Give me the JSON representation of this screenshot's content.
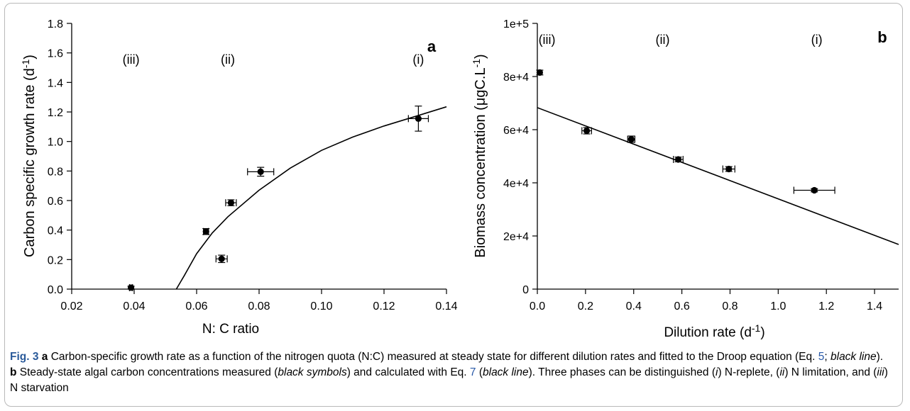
{
  "chart_data": [
    {
      "type": "scatter",
      "panel_label": "a",
      "ylabel": "Carbon specific growth rate (d",
      "ylabel_sup": "-1",
      "ylabel_end": ")",
      "xlabel": "N: C ratio",
      "xlim": [
        0.02,
        0.14
      ],
      "ylim": [
        0.0,
        1.8
      ],
      "xticks": [
        "0.02",
        "0.04",
        "0.06",
        "0.08",
        "0.10",
        "0.12",
        "0.14"
      ],
      "yticks": [
        "0.0",
        "0.2",
        "0.4",
        "0.6",
        "0.8",
        "1.0",
        "1.2",
        "1.4",
        "1.6",
        "1.8"
      ],
      "phase_labels": [
        {
          "text": "(iii)",
          "x": 0.039
        },
        {
          "text": "(ii)",
          "x": 0.07
        },
        {
          "text": "(i)",
          "x": 0.131
        }
      ],
      "points": [
        {
          "x": 0.039,
          "y": 0.01,
          "xerr": 0.0005,
          "yerr": 0.01
        },
        {
          "x": 0.063,
          "y": 0.39,
          "xerr": 0.0008,
          "yerr": 0.02
        },
        {
          "x": 0.068,
          "y": 0.205,
          "xerr": 0.0018,
          "yerr": 0.025
        },
        {
          "x": 0.071,
          "y": 0.585,
          "xerr": 0.0017,
          "yerr": 0.02
        },
        {
          "x": 0.0805,
          "y": 0.795,
          "xerr": 0.0042,
          "yerr": 0.03
        },
        {
          "x": 0.131,
          "y": 1.155,
          "xerr": 0.0032,
          "yerr": 0.085
        }
      ],
      "fit_line": {
        "x": [
          0.0535,
          0.056,
          0.06,
          0.065,
          0.07,
          0.08,
          0.09,
          0.1,
          0.11,
          0.12,
          0.13,
          0.14
        ],
        "y": [
          0.0,
          0.09,
          0.24,
          0.38,
          0.49,
          0.67,
          0.82,
          0.94,
          1.03,
          1.105,
          1.17,
          1.235
        ]
      }
    },
    {
      "type": "scatter",
      "panel_label": "b",
      "ylabel": "Biomass concentration (μgC.L",
      "ylabel_sup": "-1",
      "ylabel_end": ")",
      "xlabel": "Dilution rate (d",
      "xlabel_sup": "-1",
      "xlabel_end": ")",
      "xlim": [
        0.0,
        1.5
      ],
      "ylim": [
        0,
        100000
      ],
      "xticks": [
        "0.0",
        "0.2",
        "0.4",
        "0.6",
        "0.8",
        "1.0",
        "1.2",
        "1.4"
      ],
      "yticks": [
        "0",
        "2e+4",
        "4e+4",
        "6e+4",
        "8e+4",
        "1e+5"
      ],
      "phase_labels": [
        {
          "text": "(iii)",
          "x": 0.04
        },
        {
          "text": "(ii)",
          "x": 0.52
        },
        {
          "text": "(i)",
          "x": 1.16
        }
      ],
      "points": [
        {
          "x": 0.01,
          "y": 81500,
          "xerr": 0.0,
          "yerr": 900
        },
        {
          "x": 0.205,
          "y": 59600,
          "xerr": 0.02,
          "yerr": 1200
        },
        {
          "x": 0.39,
          "y": 56400,
          "xerr": 0.015,
          "yerr": 1200
        },
        {
          "x": 0.585,
          "y": 48800,
          "xerr": 0.02,
          "yerr": 900
        },
        {
          "x": 0.795,
          "y": 45200,
          "xerr": 0.025,
          "yerr": 900
        },
        {
          "x": 1.15,
          "y": 37200,
          "xerr": 0.085,
          "yerr": 600
        }
      ],
      "fit_line": {
        "x": [
          0.0,
          1.5
        ],
        "y": [
          68300,
          16800
        ]
      }
    }
  ],
  "caption": {
    "fig_label": "Fig. 3",
    "part_a_label": "a",
    "part_a_text": " Carbon-specific growth rate as a function of the nitrogen quota (N:C) measured at steady state for different dilution rates and fitted to the Droop equation (Eq. ",
    "eq5": "5",
    "part_a_text2": "; ",
    "black_line_1": "black line",
    "part_a_text3": "). ",
    "part_b_label": "b",
    "part_b_text": " Steady-state algal carbon concentrations measured (",
    "black_symbols": "black symbols",
    "part_b_text2": ") and calculated with Eq. ",
    "eq7": "7",
    "part_b_text3": " (",
    "black_line_2": "black line",
    "part_b_text4": "). Three phases can be distinguished (",
    "phase_i": "i",
    "phase_i_text": ") N-replete, (",
    "phase_ii": "ii",
    "phase_ii_text": ") N limitation, and (",
    "phase_iii": "iii",
    "phase_iii_text": ") N starvation"
  }
}
